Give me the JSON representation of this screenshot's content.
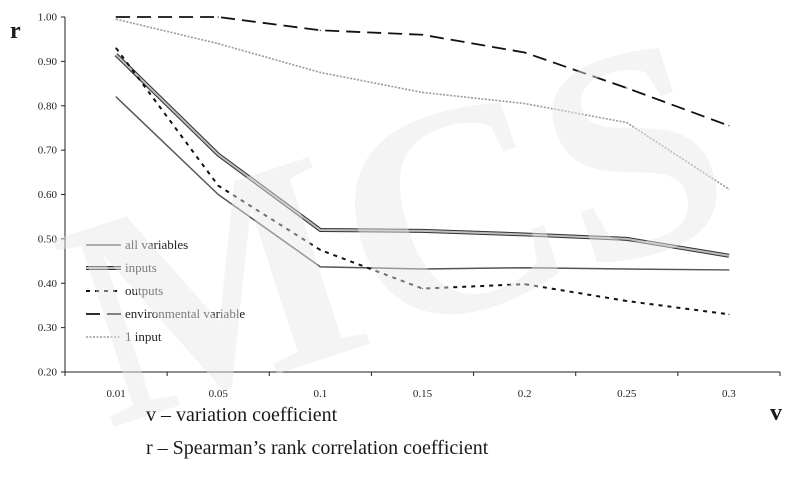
{
  "chart_data": {
    "type": "line",
    "xlabel": "v",
    "ylabel": "r",
    "categories": [
      "0.01",
      "0.05",
      "0.1",
      "0.15",
      "0.2",
      "0.25",
      "0.3"
    ],
    "ylim": [
      0.2,
      1.0
    ],
    "yticks": [
      "0.20",
      "0.30",
      "0.40",
      "0.50",
      "0.60",
      "0.70",
      "0.80",
      "0.90",
      "1.00"
    ],
    "grid": false,
    "legend_position": "bottom-left",
    "series": [
      {
        "name": "all variables",
        "values": [
          0.82,
          0.6,
          0.437,
          0.432,
          0.435,
          0.432,
          0.43
        ]
      },
      {
        "name": "inputs",
        "values": [
          0.915,
          0.69,
          0.52,
          0.518,
          0.51,
          0.5,
          0.462
        ]
      },
      {
        "name": "outputs",
        "values": [
          0.93,
          0.62,
          0.475,
          0.388,
          0.398,
          0.36,
          0.33
        ]
      },
      {
        "name": "environmental variable",
        "values": [
          1.0,
          1.0,
          0.97,
          0.96,
          0.92,
          0.84,
          0.755
        ]
      },
      {
        "name": "1 input",
        "values": [
          0.995,
          0.94,
          0.875,
          0.83,
          0.805,
          0.762,
          0.612
        ]
      }
    ]
  },
  "captions": {
    "v": "v – variation coefficient",
    "r": "r – Spearman’s rank correlation coefficient"
  },
  "watermark": "MCS"
}
